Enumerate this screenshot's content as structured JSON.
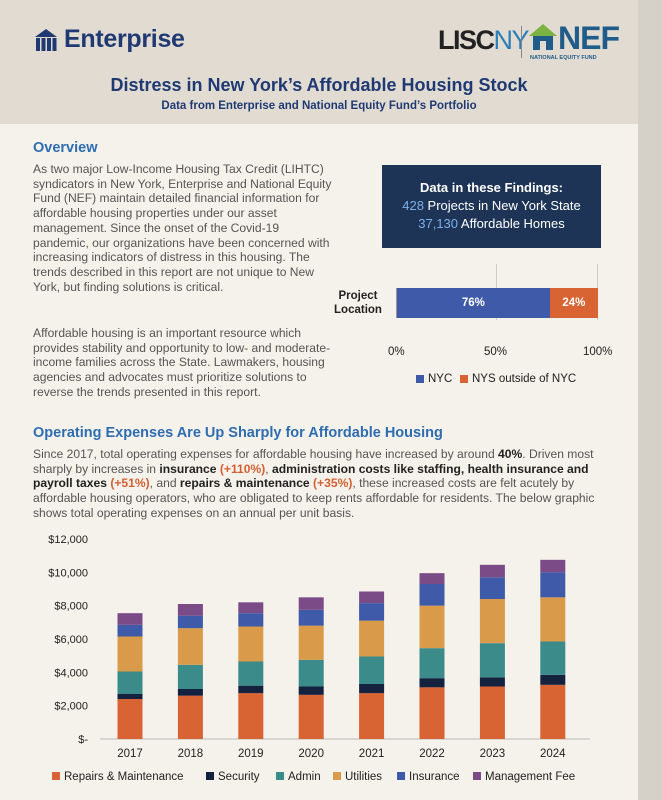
{
  "header": {
    "enterprise_logo": "Enterprise",
    "lisc_logo": "LISC",
    "lisc_ny": "NY",
    "nef_logo": "NEF",
    "nef_sub": "NATIONAL EQUITY FUND",
    "title": "Distress in New York’s Affordable Housing Stock",
    "subtitle": "Data from Enterprise and National Equity Fund’s Portfolio"
  },
  "overview": {
    "heading": "Overview",
    "p1": "As two major Low-Income Housing Tax Credit (LIHTC) syndicators in New York, Enterprise and National Equity Fund (NEF) maintain detailed financial information for affordable housing properties under our asset management. Since the onset of the Covid-19 pandemic, our organizations have been concerned with increasing indicators of distress in this housing. The trends described in this report are not unique to New York, but finding solutions is critical.",
    "p2": "Affordable housing is an important resource which provides stability and opportunity to low- and moderate-income families across the State. Lawmakers, housing agencies and advocates must prioritize solutions to reverse the trends presented in this report."
  },
  "findings": {
    "title": "Data in these Findings:",
    "projects_num": "428",
    "projects_text": " Projects in New York State",
    "homes_num": "37,130",
    "homes_text": " Affordable Homes"
  },
  "location_chart": {
    "label": "Project Location",
    "nyc_pct_label": "76%",
    "nys_pct_label": "24%",
    "ticks": [
      "0%",
      "50%",
      "100%"
    ],
    "legend_nyc": "NYC",
    "legend_nys": "NYS outside of NYC",
    "nyc_share": 76,
    "colors": {
      "nyc": "#3f5aa8",
      "nys": "#d86333"
    }
  },
  "opex": {
    "heading": "Operating Expenses Are Up Sharply for Affordable Housing",
    "t1": "Since 2017, total operating expenses for affordable housing have increased by around ",
    "b1": "40%",
    "t2": ". Driven most sharply by increases in ",
    "b2": "insurance",
    "o1": "(+110%)",
    "t3": ", ",
    "b3": "administration costs like staffing, health insurance and payroll taxes",
    "o2": "(+51%)",
    "t4": ", and ",
    "b4": "repairs & maintenance",
    "o3": "(+35%)",
    "t5": ", these increased costs are felt acutely by affordable housing operators, who are obligated to keep rents affordable for residents. The below graphic shows total operating expenses on an annual per unit basis."
  },
  "chart_data": {
    "type": "bar",
    "stacked": true,
    "title": "",
    "xlabel": "",
    "ylabel": "",
    "ylim": [
      0,
      12000
    ],
    "yticks": [
      "$-",
      "$2,000",
      "$4,000",
      "$6,000",
      "$8,000",
      "$10,000",
      "$12,000"
    ],
    "categories": [
      "2017",
      "2018",
      "2019",
      "2020",
      "2021",
      "2022",
      "2023",
      "2024"
    ],
    "series": [
      {
        "name": "Repairs & Maintenance",
        "color": "#d86333",
        "values": [
          2400,
          2600,
          2750,
          2650,
          2750,
          3100,
          3150,
          3250
        ]
      },
      {
        "name": "Security",
        "color": "#14223f",
        "values": [
          300,
          400,
          450,
          500,
          550,
          550,
          550,
          600
        ]
      },
      {
        "name": "Admin",
        "color": "#3a8b8a",
        "values": [
          1350,
          1450,
          1450,
          1600,
          1650,
          1800,
          2050,
          2000
        ]
      },
      {
        "name": "Utilities",
        "color": "#d99a4a",
        "values": [
          2100,
          2200,
          2100,
          2050,
          2150,
          2550,
          2650,
          2650
        ]
      },
      {
        "name": "Insurance",
        "color": "#3f5aa8",
        "values": [
          700,
          750,
          800,
          950,
          1050,
          1300,
          1300,
          1500
        ]
      },
      {
        "name": "Management Fee",
        "color": "#7a4b86",
        "values": [
          700,
          700,
          650,
          750,
          700,
          650,
          750,
          750
        ]
      }
    ]
  }
}
